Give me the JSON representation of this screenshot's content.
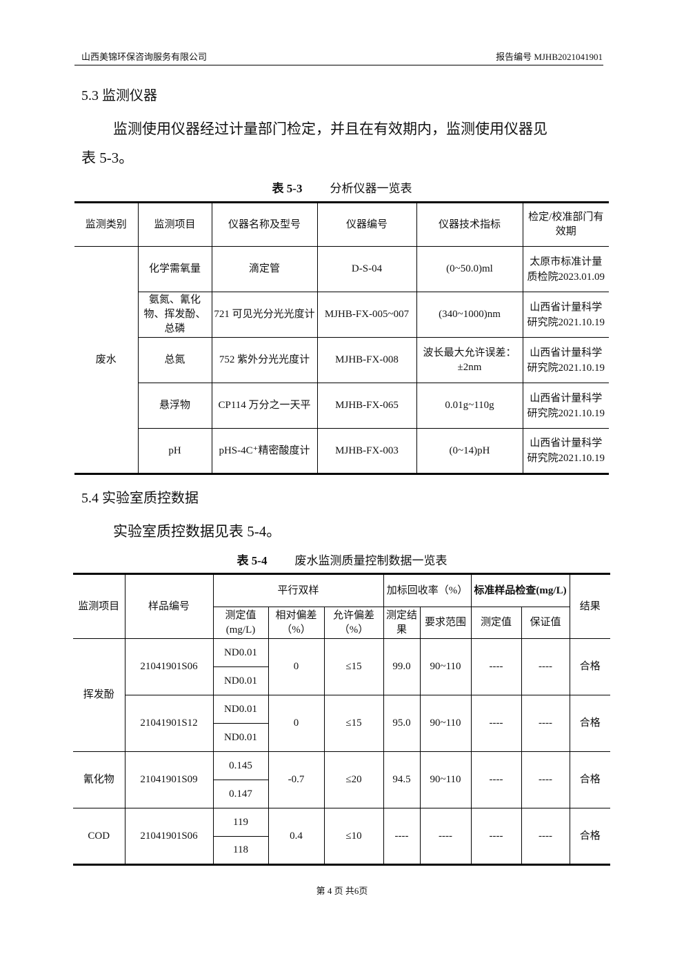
{
  "header": {
    "company": "山西美锦环保咨询服务有限公司",
    "report_no": "报告编号 MJHB2021041901"
  },
  "s53": {
    "title": "5.3 监测仪器",
    "para1": "监测使用仪器经过计量部门检定，并且在有效期内，监测使用仪器见",
    "para2": "表 5-3。",
    "caption_no": "表 5-3",
    "caption": "分析仪器一览表"
  },
  "t3": {
    "headers": [
      "监测类别",
      "监测项目",
      "仪器名称及型号",
      "仪器编号",
      "仪器技术指标",
      "检定/校准部门有效期"
    ],
    "category": "废水",
    "rows": [
      [
        "化学需氧量",
        "滴定管",
        "D-S-04",
        "(0~50.0)ml",
        "太原市标准计量质检院2023.01.09"
      ],
      [
        "氨氮、氰化物、挥发酚、总磷",
        "721 可见光分光光度计",
        "MJHB-FX-005~007",
        "(340~1000)nm",
        "山西省计量科学研究院2021.10.19"
      ],
      [
        "总氮",
        "752 紫外分光光度计",
        "MJHB-FX-008",
        "波长最大允许误差：±2nm",
        "山西省计量科学研究院2021.10.19"
      ],
      [
        "悬浮物",
        "CP114 万分之一天平",
        "MJHB-FX-065",
        "0.01g~110g",
        "山西省计量科学研究院2021.10.19"
      ],
      [
        "pH",
        "pHS-4C⁺精密酸度计",
        "MJHB-FX-003",
        "(0~14)pH",
        "山西省计量科学研究院2021.10.19"
      ]
    ]
  },
  "s54": {
    "title": "5.4 实验室质控数据",
    "para": "实验室质控数据见表 5-4。",
    "caption_no": "表 5-4",
    "caption": "废水监测质量控制数据一览表"
  },
  "t4": {
    "h": {
      "item": "监测项目",
      "sample": "样品编号",
      "parallel": "平行双样",
      "spike": "加标回收率（%）",
      "std": "标准样品检查(mg/L)",
      "result": "结果",
      "measured": "测定值(mg/L)",
      "rel_dev": "相对偏差（%）",
      "allow_dev": "允许偏差（%）",
      "spike_result": "测定结果",
      "spike_range": "要求范围",
      "std_measured": "测定值",
      "std_guaranteed": "保证值"
    },
    "rows": [
      {
        "item": "挥发酚",
        "sample": "21041901S06",
        "v1": "ND0.01",
        "v2": "ND0.01",
        "rel": "0",
        "allow": "≤15",
        "spike": "99.0",
        "range": "90~110",
        "sm": "----",
        "sg": "----",
        "result": "合格"
      },
      {
        "item": "",
        "sample": "21041901S12",
        "v1": "ND0.01",
        "v2": "ND0.01",
        "rel": "0",
        "allow": "≤15",
        "spike": "95.0",
        "range": "90~110",
        "sm": "----",
        "sg": "----",
        "result": "合格"
      },
      {
        "item": "氰化物",
        "sample": "21041901S09",
        "v1": "0.145",
        "v2": "0.147",
        "rel": "-0.7",
        "allow": "≤20",
        "spike": "94.5",
        "range": "90~110",
        "sm": "----",
        "sg": "----",
        "result": "合格"
      },
      {
        "item": "COD",
        "sample": "21041901S06",
        "v1": "119",
        "v2": "118",
        "rel": "0.4",
        "allow": "≤10",
        "spike": "----",
        "range": "----",
        "sm": "----",
        "sg": "----",
        "result": "合格"
      }
    ]
  },
  "footer": "第 4 页 共6页"
}
